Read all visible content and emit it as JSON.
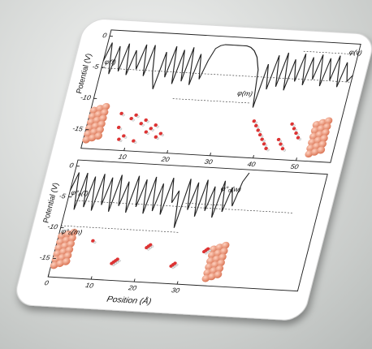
{
  "chart_data": [
    {
      "type": "line",
      "y_label": "Potential (V)",
      "annotations": [
        "φ(v)",
        "φ(f)",
        "φ(m)"
      ],
      "x": [
        0,
        1,
        2,
        3,
        4,
        5,
        6,
        7,
        8,
        9,
        10,
        11,
        12,
        13,
        14,
        15,
        16,
        17,
        18,
        19,
        20,
        21,
        22,
        23,
        24,
        25,
        26,
        27,
        28,
        29,
        30,
        31,
        32,
        33,
        34,
        35,
        36,
        37,
        38,
        39,
        40,
        41,
        42,
        43,
        44,
        45,
        46,
        47,
        48,
        49,
        50,
        51,
        52,
        53,
        54,
        55,
        56,
        57,
        58
      ],
      "values": [
        -4,
        -1,
        -6,
        -1.5,
        -5.5,
        -1,
        -6,
        -2,
        -5,
        -1,
        -6,
        -1,
        -5.5,
        -8,
        -2,
        -6,
        -1,
        -7,
        -1.5,
        -6.5,
        -1,
        -7,
        -2,
        -6,
        -3,
        -1,
        -0.5,
        -0.3,
        -0.3,
        -0.3,
        -0.3,
        -0.3,
        -0.3,
        -0.5,
        -1,
        -2,
        -4,
        -10,
        -3,
        -7,
        -1.5,
        -6.5,
        -1,
        -7,
        -2,
        -5.5,
        -1,
        -6,
        -1.5,
        -5,
        -1,
        -6,
        -1.5,
        -5,
        -1,
        -6,
        -2,
        -5,
        -4
      ],
      "color": "#222222",
      "xlim": [
        0,
        58
      ],
      "ylim": [
        -18,
        1
      ],
      "xticks": [
        10,
        20,
        30,
        40,
        50
      ],
      "yticks": [
        0,
        -5,
        -10,
        -15
      ]
    },
    {
      "type": "line",
      "y_label": "Potential (V)",
      "x_label": "Position (Å)",
      "annotations": [
        "φ°₀(f)",
        "φ°₀(m)",
        "φ°₀(w)"
      ],
      "x": [
        0,
        1,
        2,
        3,
        4,
        5,
        6,
        7,
        8,
        9,
        10,
        11,
        12,
        13,
        14,
        15,
        16,
        17,
        18,
        19,
        20,
        21,
        22,
        23,
        24,
        25,
        26,
        27,
        28,
        29,
        30,
        31,
        32,
        33,
        34,
        35,
        36,
        37,
        38,
        39,
        40
      ],
      "values": [
        -4,
        -1,
        -7,
        -1,
        -6.5,
        -1.5,
        -7,
        -1,
        -6,
        -1.5,
        -7,
        -1,
        -6,
        -2,
        -7,
        -1,
        -6,
        -1.5,
        -7,
        -1,
        -6.5,
        -2,
        -7,
        -1,
        -5,
        -3,
        -9,
        -1,
        -6,
        -1.5,
        -7,
        -1,
        -6,
        -2,
        -7,
        -1,
        -6,
        -2,
        -5,
        -1,
        0.5
      ],
      "color": "#222222",
      "xlim": [
        0,
        40
      ],
      "ylim": [
        -18,
        1
      ],
      "xticks": [
        0,
        10,
        20,
        30
      ],
      "yticks": [
        0,
        -5,
        -10,
        -15
      ]
    }
  ]
}
